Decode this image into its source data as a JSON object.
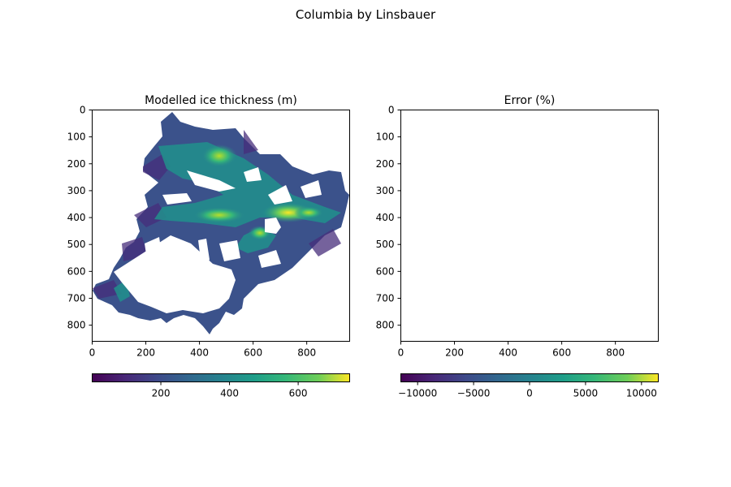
{
  "figure": {
    "title": "Columbia by Linsbauer"
  },
  "chart_data": [
    {
      "type": "heatmap",
      "title": "Modelled ice thickness (m)",
      "xlabel": "",
      "ylabel": "",
      "xlim": [
        0,
        960
      ],
      "ylim": [
        860,
        0
      ],
      "xticks": [
        0,
        200,
        400,
        600,
        800
      ],
      "yticks": [
        0,
        100,
        200,
        300,
        400,
        500,
        600,
        700,
        800
      ],
      "colormap": "viridis",
      "colorbar": {
        "orientation": "horizontal",
        "range": [
          0,
          750
        ],
        "ticks": [
          200,
          400,
          600
        ]
      },
      "has_data": true
    },
    {
      "type": "heatmap",
      "title": "Error (%)",
      "xlabel": "",
      "ylabel": "",
      "xlim": [
        0,
        960
      ],
      "ylim": [
        860,
        0
      ],
      "xticks": [
        0,
        200,
        400,
        600,
        800
      ],
      "yticks": [
        0,
        100,
        200,
        300,
        400,
        500,
        600,
        700,
        800
      ],
      "colormap": "viridis",
      "colorbar": {
        "orientation": "horizontal",
        "range": [
          -11500,
          11500
        ],
        "ticks": [
          -10000,
          -5000,
          0,
          5000,
          10000
        ],
        "tick_labels": [
          "−10000",
          "−5000",
          "0",
          "5000",
          "10000"
        ]
      },
      "has_data": false
    }
  ]
}
